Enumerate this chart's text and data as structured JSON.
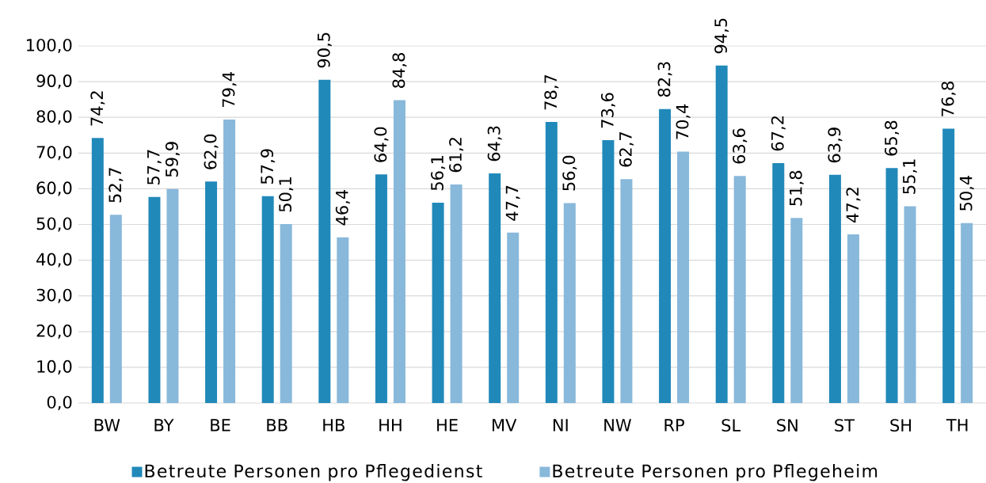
{
  "chart_data": {
    "type": "bar",
    "categories": [
      "BW",
      "BY",
      "BE",
      "BB",
      "HB",
      "HH",
      "HE",
      "MV",
      "NI",
      "NW",
      "RP",
      "SL",
      "SN",
      "ST",
      "SH",
      "TH"
    ],
    "series": [
      {
        "name": "Betreute Personen pro Pflegedienst",
        "color": "#2089b9",
        "values": [
          74.2,
          57.7,
          62.0,
          57.9,
          90.5,
          64.0,
          56.1,
          64.3,
          78.7,
          73.6,
          82.3,
          94.5,
          67.2,
          63.9,
          65.8,
          76.8
        ],
        "value_labels": [
          "74,2",
          "57,7",
          "62,0",
          "57,9",
          "90,5",
          "64,0",
          "56,1",
          "64,3",
          "78,7",
          "73,6",
          "82,3",
          "94,5",
          "67,2",
          "63,9",
          "65,8",
          "76,8"
        ]
      },
      {
        "name": "Betreute Personen pro Pflegeheim",
        "color": "#88b8da",
        "values": [
          52.7,
          59.9,
          79.4,
          50.1,
          46.4,
          84.8,
          61.2,
          47.7,
          56.0,
          62.7,
          70.4,
          63.6,
          51.8,
          47.2,
          55.1,
          50.4
        ],
        "value_labels": [
          "52,7",
          "59,9",
          "79,4",
          "50,1",
          "46,4",
          "84,8",
          "61,2",
          "47,7",
          "56,0",
          "62,7",
          "70,4",
          "63,6",
          "51,8",
          "47,2",
          "55,1",
          "50,4"
        ]
      }
    ],
    "ylim": [
      0,
      100
    ],
    "yticks": [
      {
        "value": 0,
        "label": "0,0"
      },
      {
        "value": 10,
        "label": "10,0"
      },
      {
        "value": 20,
        "label": "20,0"
      },
      {
        "value": 30,
        "label": "30,0"
      },
      {
        "value": 40,
        "label": "40,0"
      },
      {
        "value": 50,
        "label": "50,0"
      },
      {
        "value": 60,
        "label": "60,0"
      },
      {
        "value": 70,
        "label": "70,0"
      },
      {
        "value": 80,
        "label": "80,0"
      },
      {
        "value": 90,
        "label": "90,0"
      },
      {
        "value": 100,
        "label": "100,0"
      }
    ],
    "grid": "y",
    "legend": "bottom"
  }
}
